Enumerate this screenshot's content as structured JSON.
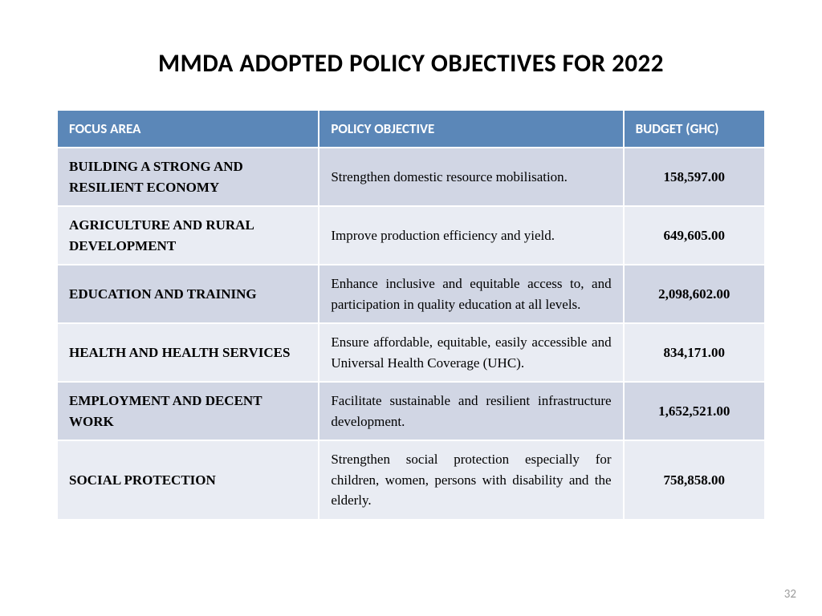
{
  "title": "MMDA ADOPTED POLICY OBJECTIVES FOR 2022",
  "columns": {
    "focus": "FOCUS AREA",
    "policy": "POLICY OBJECTIVE",
    "budget": "BUDGET (GHC)"
  },
  "rows": [
    {
      "focus": "BUILDING A STRONG AND RESILIENT ECONOMY",
      "policy": "Strengthen domestic resource mobilisation.",
      "budget": "158,597.00"
    },
    {
      "focus": "AGRICULTURE AND RURAL DEVELOPMENT",
      "policy": "Improve production efficiency and yield.",
      "budget": "649,605.00"
    },
    {
      "focus": "EDUCATION AND TRAINING",
      "policy": "Enhance inclusive and equitable access to, and participation in quality education at all levels.",
      "budget": "2,098,602.00"
    },
    {
      "focus": "HEALTH AND HEALTH SERVICES",
      "policy": "Ensure affordable, equitable, easily accessible and Universal Health Coverage (UHC).",
      "budget": "834,171.00"
    },
    {
      "focus": "EMPLOYMENT AND DECENT WORK",
      "policy": "Facilitate sustainable and resilient infrastructure development.",
      "budget": "1,652,521.00"
    },
    {
      "focus": "SOCIAL PROTECTION",
      "policy": "Strengthen social protection especially for children, women, persons with disability and the elderly.",
      "budget": "758,858.00"
    }
  ],
  "page_number": "32",
  "styles": {
    "header_bg": "#5b87b8",
    "row_odd_bg": "#d1d6e4",
    "row_even_bg": "#e9ecf3",
    "title_color": "#000000",
    "page_num_color": "#9b9b9b"
  }
}
